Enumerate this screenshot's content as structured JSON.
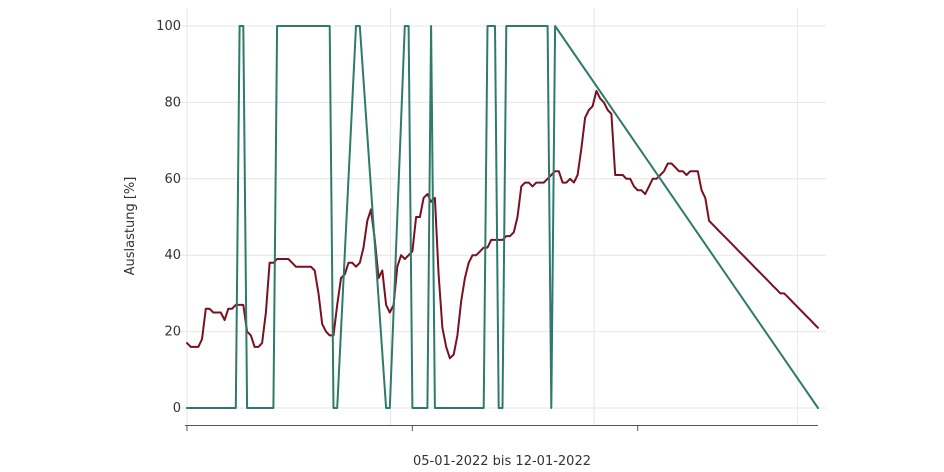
{
  "chart_data": {
    "type": "line",
    "xlabel": "05-01-2022 bis 12-01-2022",
    "ylabel": "Auslastung [%]",
    "ylim": [
      0,
      100
    ],
    "yticks": [
      0,
      20,
      40,
      60,
      80,
      100
    ],
    "xlim": [
      0,
      168
    ],
    "grid": true,
    "legend": "none",
    "series": [
      {
        "color": "#7a1020",
        "x": [
          0,
          1,
          3,
          4,
          5,
          6,
          7,
          8,
          9,
          10,
          11,
          12,
          13,
          14,
          15,
          16,
          17,
          18,
          19,
          20,
          21,
          22,
          23,
          24,
          25,
          26,
          27,
          28,
          29,
          30,
          31,
          32,
          33,
          34,
          35,
          36,
          37,
          38,
          39,
          40,
          41,
          42,
          43,
          44,
          45,
          46,
          47,
          48,
          49,
          50,
          51,
          52,
          53,
          54,
          55,
          56,
          57,
          58,
          59,
          60,
          61,
          62,
          63,
          64,
          65,
          66,
          67,
          68,
          69,
          70,
          71,
          72,
          73,
          74,
          75,
          76,
          77,
          78,
          79,
          80,
          81,
          82,
          83,
          84,
          85,
          86,
          87,
          88,
          89,
          90,
          91,
          92,
          93,
          94,
          95,
          96,
          97,
          98,
          99,
          100,
          101,
          102,
          103,
          104,
          105,
          106,
          107,
          108,
          109,
          110,
          111,
          112,
          113,
          114,
          115,
          116,
          117,
          118,
          119,
          120,
          121,
          122,
          123,
          124,
          125,
          126,
          127,
          128,
          129,
          130,
          131,
          132,
          133,
          134,
          135,
          136,
          137,
          138,
          139,
          140,
          141,
          142,
          143,
          144,
          145,
          146,
          147,
          148,
          149,
          150,
          151,
          152,
          153,
          154,
          155,
          156,
          157,
          158,
          159,
          160,
          161,
          162,
          163,
          164,
          165,
          166,
          167,
          168
        ],
        "y": [
          17,
          16,
          16,
          18,
          26,
          26,
          25,
          25,
          25,
          23,
          26,
          26,
          27,
          27,
          27,
          20,
          19,
          16,
          16,
          17,
          25,
          38,
          38,
          39,
          39,
          39,
          39,
          38,
          37,
          37,
          37,
          37,
          37,
          36,
          30,
          22,
          20,
          19,
          19,
          27,
          34,
          35,
          38,
          38,
          37,
          38,
          42,
          49,
          52,
          44,
          34,
          36,
          27,
          25,
          27,
          37,
          40,
          39,
          40,
          41,
          50,
          50,
          55,
          56,
          54,
          55,
          35,
          21,
          16,
          13,
          14,
          19,
          28,
          34,
          38,
          40,
          40,
          41,
          42,
          42,
          44,
          44,
          44,
          44,
          45,
          45,
          46,
          50,
          58,
          59,
          59,
          58,
          59,
          59,
          59,
          60,
          61,
          62,
          62,
          59,
          59,
          60,
          59,
          61,
          68,
          76,
          78,
          79,
          83,
          81,
          80,
          78,
          77,
          61,
          61,
          61,
          60,
          60,
          58,
          57,
          57,
          56,
          58,
          60,
          60,
          61,
          62,
          64,
          64,
          63,
          62,
          62,
          61,
          62,
          62,
          62,
          57,
          55,
          49,
          48,
          47,
          46,
          45,
          44,
          43,
          42,
          41,
          40,
          39,
          38,
          37,
          36,
          35,
          34,
          33,
          32,
          31,
          30,
          30,
          29,
          28,
          27,
          26,
          25,
          24,
          23,
          22,
          21
        ]
      },
      {
        "color": "#2e7a6b",
        "x": [
          0,
          13,
          14,
          15,
          16,
          17,
          18,
          23,
          24,
          38,
          39,
          40,
          45,
          46,
          53,
          54,
          58,
          59,
          60,
          64,
          65,
          66,
          67,
          68,
          69,
          79,
          80,
          82,
          83,
          84,
          85,
          96,
          97,
          98,
          168
        ],
        "y": [
          0,
          0,
          100,
          100,
          0,
          0,
          0,
          0,
          100,
          100,
          0,
          0,
          100,
          100,
          0,
          0,
          100,
          100,
          0,
          0,
          100,
          0,
          0,
          0,
          0,
          0,
          100,
          100,
          0,
          0,
          100,
          100,
          0,
          100,
          0
        ]
      }
    ]
  }
}
